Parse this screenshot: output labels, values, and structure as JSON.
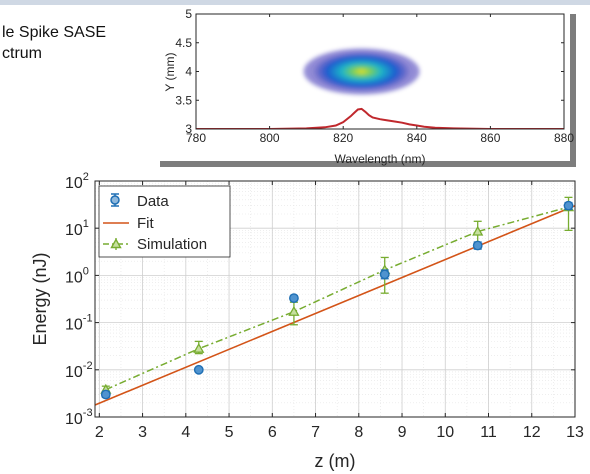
{
  "slide": {
    "title_lines": [
      "le Spike SASE",
      "ctrum"
    ]
  },
  "chart_data": [
    {
      "type": "heatmap",
      "xlabel": "Wavelength (nm)",
      "ylabel": "Y (mm)",
      "xlim": [
        780,
        880
      ],
      "ylim": [
        3,
        5
      ],
      "xticks": [
        "780",
        "800",
        "820",
        "840",
        "860",
        "880"
      ],
      "yticks": [
        "3",
        "3.5",
        "4",
        "4.5",
        "5"
      ],
      "image_center": {
        "wavelength": 825,
        "y": 4.0
      },
      "spectrum_line": {
        "x": [
          780,
          800,
          810,
          815,
          818,
          820,
          822,
          823,
          824,
          825,
          826,
          827,
          828,
          830,
          832,
          834,
          836,
          838,
          840,
          842,
          845,
          850,
          860,
          880
        ],
        "y": [
          3.0,
          3.0,
          3.01,
          3.03,
          3.06,
          3.12,
          3.22,
          3.28,
          3.34,
          3.35,
          3.3,
          3.24,
          3.2,
          3.17,
          3.15,
          3.13,
          3.11,
          3.08,
          3.06,
          3.04,
          3.02,
          3.01,
          3.0,
          3.0
        ],
        "color": "#c0282d"
      },
      "grid": false
    },
    {
      "type": "scatter",
      "xlabel": "z (m)",
      "ylabel": "Energy (nJ)",
      "xlim": [
        1.9,
        13
      ],
      "ylim_log10": [
        -3,
        2
      ],
      "yscale": "log",
      "xticks": [
        "2",
        "3",
        "4",
        "5",
        "6",
        "7",
        "8",
        "9",
        "10",
        "11",
        "12",
        "13"
      ],
      "yticks": [
        {
          "base": "10",
          "exp": "-3"
        },
        {
          "base": "10",
          "exp": "-2"
        },
        {
          "base": "10",
          "exp": "-1"
        },
        {
          "base": "10",
          "exp": "0"
        },
        {
          "base": "10",
          "exp": "1"
        },
        {
          "base": "10",
          "exp": "2"
        }
      ],
      "grid": true,
      "legend_position": "top-left",
      "series": [
        {
          "name": "Data",
          "color": "#1f6fb4",
          "x": [
            2.15,
            4.3,
            6.5,
            8.6,
            10.75,
            12.85
          ],
          "y": [
            0.003,
            0.01,
            0.33,
            1.05,
            4.3,
            30
          ],
          "err_low": [
            0.0026,
            0.009,
            0.3,
            0.85,
            3.6,
            25
          ],
          "err_high": [
            0.0035,
            0.011,
            0.37,
            1.3,
            5.1,
            35
          ]
        },
        {
          "name": "Fit",
          "color": "#d35418",
          "x": [
            1.9,
            13
          ],
          "y": [
            0.0018,
            30
          ]
        },
        {
          "name": "Simulation",
          "color": "#77ac30",
          "x": [
            2.15,
            4.3,
            6.5,
            8.6,
            10.75,
            12.85
          ],
          "y": [
            0.0038,
            0.028,
            0.17,
            1.3,
            8.5,
            28
          ],
          "err_low": [
            0.0033,
            0.022,
            0.09,
            0.42,
            3.8,
            9
          ],
          "err_high": [
            0.0045,
            0.04,
            0.27,
            2.4,
            14,
            45
          ]
        }
      ]
    }
  ]
}
